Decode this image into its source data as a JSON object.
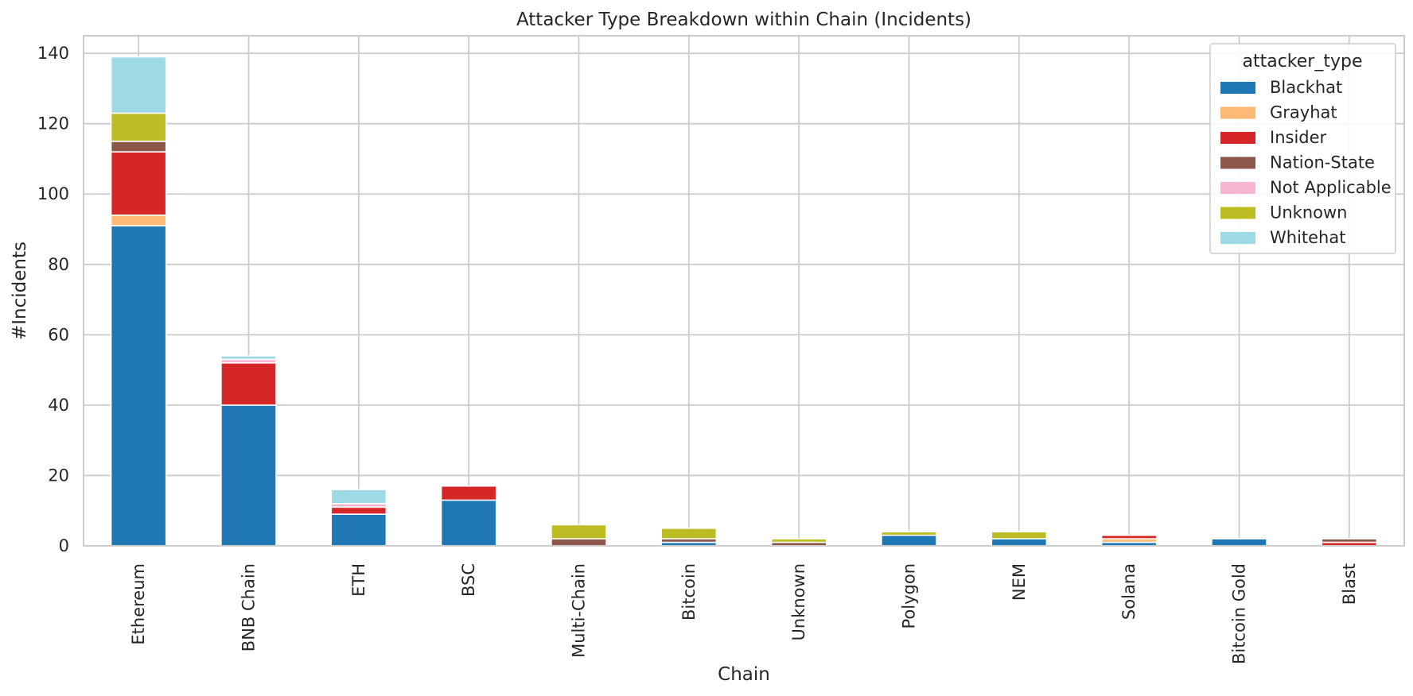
{
  "chart_data": {
    "type": "bar",
    "stacked": true,
    "title": "Attacker Type Breakdown within Chain (Incidents)",
    "xlabel": "Chain",
    "ylabel": "#Incidents",
    "ylim": [
      0,
      145
    ],
    "yticks": [
      0,
      20,
      40,
      60,
      80,
      100,
      120,
      140
    ],
    "grid": true,
    "legend": {
      "title": "attacker_type",
      "placement": "top-right"
    },
    "categories": [
      "Ethereum",
      "BNB Chain",
      "ETH",
      "BSC",
      "Multi-Chain",
      "Bitcoin",
      "Unknown",
      "Polygon",
      "NEM",
      "Solana",
      "Bitcoin Gold",
      "Blast"
    ],
    "series": [
      {
        "name": "Blackhat",
        "color": "#1f77b4",
        "values": [
          91,
          40,
          9,
          13,
          0,
          1,
          0,
          3,
          2,
          1,
          2,
          0
        ]
      },
      {
        "name": "Grayhat",
        "color": "#fdba74",
        "values": [
          3,
          0,
          0,
          0,
          0,
          0,
          0,
          0,
          0,
          1,
          0,
          0
        ]
      },
      {
        "name": "Insider",
        "color": "#d62728",
        "values": [
          18,
          12,
          2,
          4,
          0,
          0,
          0,
          0,
          0,
          1,
          0,
          1
        ]
      },
      {
        "name": "Nation-State",
        "color": "#8c564b",
        "values": [
          3,
          0,
          0,
          0,
          2,
          1,
          1,
          0,
          0,
          0,
          0,
          1
        ]
      },
      {
        "name": "Not Applicable",
        "color": "#f7b6d2",
        "values": [
          0,
          1,
          1,
          0,
          0,
          0,
          0,
          0,
          0,
          0,
          0,
          0
        ]
      },
      {
        "name": "Unknown",
        "color": "#bcbd22",
        "values": [
          8,
          0,
          0,
          0,
          4,
          3,
          1,
          1,
          2,
          0,
          0,
          0
        ]
      },
      {
        "name": "Whitehat",
        "color": "#9edae5",
        "values": [
          16,
          1,
          4,
          0,
          0,
          0,
          0,
          0,
          0,
          0,
          0,
          0
        ]
      }
    ]
  }
}
